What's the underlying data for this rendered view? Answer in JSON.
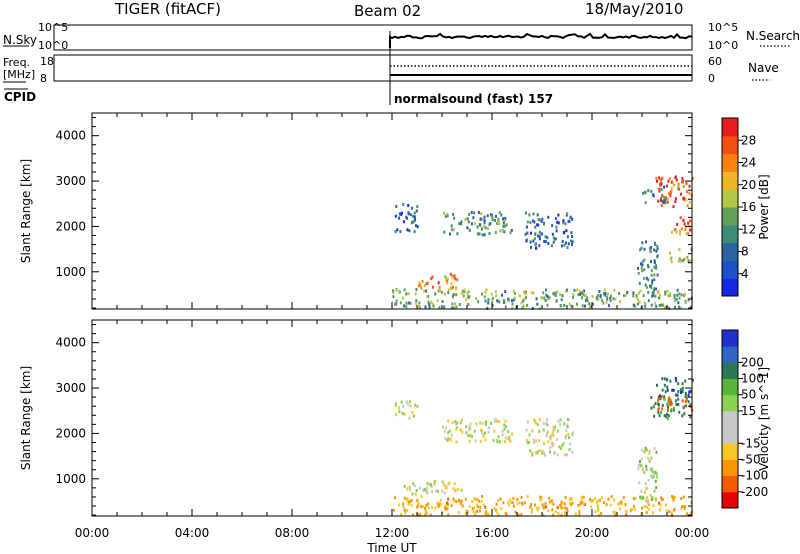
{
  "header": {
    "radar": "TIGER (fitACF)",
    "beam": "Beam 02",
    "date": "18/May/2010"
  },
  "status_panels": {
    "nsky_label": "N.Sky",
    "nsearch_label": "N.Search",
    "freq_label_line1": "Freq.",
    "freq_label_line2": "[MHz]",
    "nave_label": "Nave",
    "cpid_label": "CPID",
    "cpid_text": "normalsound (fast) 157",
    "noise_ticks_left": [
      "10^5",
      "10^0"
    ],
    "noise_ticks_right": [
      "10^5",
      "10^0"
    ],
    "freq_ticks_left": [
      "18",
      "8"
    ],
    "nave_ticks_right": [
      "60",
      "0"
    ]
  },
  "colors": {
    "power_scale": [
      "#1428e6",
      "#1e50c8",
      "#2d64a0",
      "#3c8c78",
      "#64a05a",
      "#b4c846",
      "#f0b428",
      "#fa8214",
      "#f05014",
      "#e61e1e"
    ],
    "velocity_scale": [
      "#e60000",
      "#f05a00",
      "#fa9600",
      "#f5c828",
      "#c8c8c8",
      "#c8c8c8",
      "#8cd250",
      "#5ab43c",
      "#2d7850",
      "#3264c8",
      "#1e32c8"
    ]
  },
  "chart_data": [
    {
      "type": "heatmap",
      "title": "",
      "parameter": "Power",
      "xlabel": "Time UT",
      "ylabel": "Slant Range [km]",
      "xlim": [
        "00:00",
        "24:00"
      ],
      "ylim": [
        180,
        4500
      ],
      "x_ticks": [
        "00:00",
        "04:00",
        "08:00",
        "12:00",
        "16:00",
        "20:00",
        "00:00"
      ],
      "y_ticks": [
        "1000",
        "2000",
        "3000",
        "4000"
      ],
      "colorbar_label": "Power [dB]",
      "colorbar_range": [
        0,
        32
      ],
      "colorbar_ticks": [
        "4",
        "8",
        "12",
        "16",
        "20",
        "24",
        "28"
      ],
      "data_start": "12:00",
      "regions": [
        {
          "t0": 12.0,
          "t1": 24.0,
          "r0": 180,
          "r1": 600,
          "value": 14
        },
        {
          "t0": 12.1,
          "t1": 13.0,
          "r0": 1850,
          "r1": 2500,
          "value": 8
        },
        {
          "t0": 13.0,
          "t1": 14.6,
          "r0": 600,
          "r1": 950,
          "value": 24
        },
        {
          "t0": 14.0,
          "t1": 16.8,
          "r0": 1800,
          "r1": 2300,
          "value": 12
        },
        {
          "t0": 17.3,
          "t1": 19.2,
          "r0": 1500,
          "r1": 2300,
          "value": 8
        },
        {
          "t0": 21.8,
          "t1": 22.6,
          "r0": 450,
          "r1": 1700,
          "value": 10
        },
        {
          "t0": 22.0,
          "t1": 23.0,
          "r0": 2500,
          "r1": 2900,
          "value": 10
        },
        {
          "t0": 22.5,
          "t1": 24.0,
          "r0": 2400,
          "r1": 3100,
          "value": 28
        },
        {
          "t0": 23.0,
          "t1": 24.0,
          "r0": 1800,
          "r1": 2200,
          "value": 26
        },
        {
          "t0": 23.0,
          "t1": 24.0,
          "r0": 1200,
          "r1": 1500,
          "value": 18
        }
      ]
    },
    {
      "type": "heatmap",
      "title": "",
      "parameter": "Velocity",
      "xlabel": "Time UT",
      "ylabel": "Slant Range [km]",
      "xlim": [
        "00:00",
        "24:00"
      ],
      "ylim": [
        180,
        4500
      ],
      "x_ticks": [
        "00:00",
        "04:00",
        "08:00",
        "12:00",
        "16:00",
        "20:00",
        "00:00"
      ],
      "y_ticks": [
        "1000",
        "2000",
        "3000",
        "4000"
      ],
      "colorbar_label": "Velocity [m s^-1]",
      "colorbar_ticks": [
        "-200",
        "-100",
        "-50",
        "-15",
        "15",
        "50",
        "100",
        "200"
      ],
      "data_start": "12:00",
      "regions": [
        {
          "t0": 12.0,
          "t1": 24.0,
          "r0": 180,
          "r1": 600,
          "value": -60
        },
        {
          "t0": 12.1,
          "t1": 13.0,
          "r0": 2300,
          "r1": 2700,
          "value": 0
        },
        {
          "t0": 12.4,
          "t1": 14.8,
          "r0": 650,
          "r1": 950,
          "value": 0
        },
        {
          "t0": 14.0,
          "t1": 16.8,
          "r0": 1800,
          "r1": 2300,
          "value": 0
        },
        {
          "t0": 17.3,
          "t1": 19.2,
          "r0": 1500,
          "r1": 2300,
          "value": 0
        },
        {
          "t0": 21.8,
          "t1": 22.6,
          "r0": 450,
          "r1": 1700,
          "value": 20
        },
        {
          "t0": 22.3,
          "t1": 24.0,
          "r0": 2300,
          "r1": 2800,
          "value": 120
        },
        {
          "t0": 22.6,
          "t1": 24.0,
          "r0": 2500,
          "r1": 2800,
          "value": -150
        },
        {
          "t0": 22.5,
          "t1": 24.0,
          "r0": 2800,
          "r1": 3200,
          "value": 180
        }
      ]
    }
  ]
}
